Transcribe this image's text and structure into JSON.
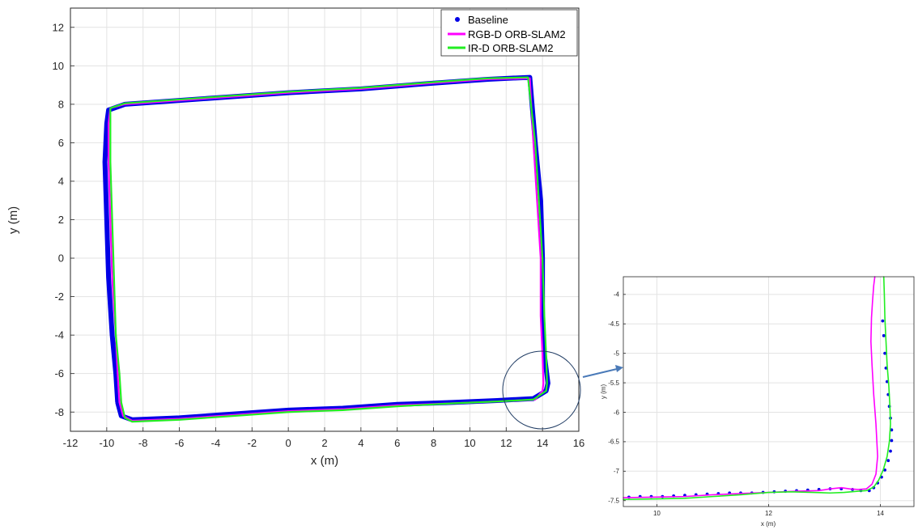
{
  "chart_data": [
    {
      "type": "line",
      "xlabel": "x (m)",
      "ylabel": "y (m)",
      "xlim": [
        -12,
        16
      ],
      "ylim": [
        -9,
        13
      ],
      "xticks": [
        -12,
        -10,
        -8,
        -6,
        -4,
        -2,
        0,
        2,
        4,
        6,
        8,
        10,
        12,
        14,
        16
      ],
      "yticks": [
        -8,
        -6,
        -4,
        -2,
        0,
        2,
        4,
        6,
        8,
        10,
        12
      ],
      "grid": true,
      "legend_position": "top-right",
      "series": [
        {
          "name": "Baseline",
          "style": "markers",
          "color": "#0000e6",
          "x": [
            -9.4,
            -9.2,
            -8.6,
            -6.0,
            -3.0,
            0.0,
            3.0,
            6.0,
            9.0,
            11.5,
            13.5,
            14.2,
            14.3,
            14.1,
            14.0,
            14.0,
            13.9,
            13.6,
            13.3,
            11.0,
            8.0,
            4.0,
            0.0,
            -3.0,
            -6.0,
            -9.0,
            -9.9,
            -10.0,
            -10.1,
            -10.0,
            -9.9,
            -9.7,
            -9.5,
            -9.4
          ],
          "y": [
            -7.5,
            -8.2,
            -8.4,
            -8.3,
            -8.1,
            -7.9,
            -7.8,
            -7.6,
            -7.5,
            -7.4,
            -7.3,
            -6.9,
            -6.5,
            -5.0,
            -3.0,
            0.0,
            3.0,
            6.0,
            9.4,
            9.3,
            9.1,
            8.8,
            8.6,
            8.4,
            8.2,
            8.0,
            7.7,
            7.0,
            5.0,
            2.0,
            -1.0,
            -4.0,
            -6.0,
            -7.5
          ]
        },
        {
          "name": "RGB-D ORB-SLAM2",
          "style": "line",
          "color": "#ff00ff",
          "x": [
            -9.3,
            -9.1,
            -8.6,
            -6.0,
            -3.0,
            0.0,
            3.0,
            6.0,
            9.0,
            11.5,
            13.0,
            13.6,
            14.0,
            14.05,
            14.0,
            13.9,
            13.9,
            13.7,
            13.5,
            13.3,
            11.0,
            8.0,
            4.0,
            0.0,
            -3.0,
            -6.0,
            -9.0,
            -9.8,
            -9.9,
            -9.9,
            -9.8,
            -9.7,
            -9.5,
            -9.4,
            -9.3
          ],
          "y": [
            -7.5,
            -8.2,
            -8.45,
            -8.35,
            -8.15,
            -7.95,
            -7.85,
            -7.65,
            -7.55,
            -7.45,
            -7.38,
            -7.35,
            -6.9,
            -6.5,
            -5.0,
            -3.0,
            0.0,
            3.0,
            6.0,
            9.35,
            9.3,
            9.1,
            8.8,
            8.6,
            8.4,
            8.2,
            8.0,
            7.8,
            7.0,
            5.0,
            2.0,
            -1.0,
            -4.0,
            -6.0,
            -7.5
          ]
        },
        {
          "name": "IR-D ORB-SLAM2",
          "style": "line",
          "color": "#22ee22",
          "x": [
            -9.2,
            -9.0,
            -8.6,
            -6.0,
            -3.0,
            0.0,
            3.0,
            6.0,
            9.0,
            11.5,
            13.5,
            14.2,
            14.25,
            14.2,
            14.1,
            14.0,
            13.8,
            13.6,
            13.2,
            11.0,
            8.0,
            4.0,
            0.0,
            -3.0,
            -6.0,
            -9.0,
            -9.8,
            -9.8,
            -9.8,
            -9.7,
            -9.6,
            -9.5,
            -9.3,
            -9.2
          ],
          "y": [
            -7.5,
            -8.3,
            -8.5,
            -8.4,
            -8.2,
            -8.0,
            -7.9,
            -7.7,
            -7.55,
            -7.45,
            -7.35,
            -6.9,
            -6.5,
            -5.0,
            -3.0,
            0.0,
            3.0,
            6.0,
            9.4,
            9.35,
            9.15,
            8.85,
            8.65,
            8.45,
            8.25,
            8.05,
            7.8,
            7.0,
            5.0,
            2.0,
            -1.0,
            -4.0,
            -6.0,
            -7.5
          ]
        }
      ]
    },
    {
      "type": "line",
      "xlabel": "x (m)",
      "ylabel": "y (m)",
      "xlim": [
        9.4,
        14.6
      ],
      "ylim": [
        -7.6,
        -3.7
      ],
      "xticks": [
        10,
        12,
        14
      ],
      "yticks": [
        -7.5,
        -7,
        -6.5,
        -6,
        -5.5,
        -5,
        -4.5,
        -4
      ],
      "grid": true,
      "series": [
        {
          "name": "Baseline",
          "style": "markers",
          "color": "#0000e6",
          "x": [
            9.5,
            9.7,
            9.9,
            10.1,
            10.3,
            10.5,
            10.7,
            10.9,
            11.1,
            11.3,
            11.5,
            11.7,
            11.9,
            12.1,
            12.3,
            12.5,
            12.7,
            12.9,
            13.1,
            13.3,
            13.5,
            13.65,
            13.8,
            13.88,
            13.95,
            14.02,
            14.08,
            14.14,
            14.18,
            14.2,
            14.2,
            14.18,
            14.16,
            14.14,
            14.12,
            14.1,
            14.08,
            14.06,
            14.04
          ],
          "y": [
            -7.44,
            -7.43,
            -7.43,
            -7.43,
            -7.42,
            -7.41,
            -7.4,
            -7.39,
            -7.38,
            -7.37,
            -7.37,
            -7.37,
            -7.36,
            -7.35,
            -7.34,
            -7.33,
            -7.32,
            -7.31,
            -7.3,
            -7.3,
            -7.31,
            -7.33,
            -7.33,
            -7.28,
            -7.2,
            -7.1,
            -6.98,
            -6.82,
            -6.66,
            -6.48,
            -6.3,
            -6.1,
            -5.9,
            -5.7,
            -5.48,
            -5.25,
            -5.0,
            -4.7,
            -4.45
          ]
        },
        {
          "name": "RGB-D ORB-SLAM2",
          "style": "line",
          "color": "#ff00ff",
          "x": [
            9.4,
            10.0,
            10.5,
            11.0,
            11.5,
            12.0,
            12.5,
            12.9,
            13.1,
            13.3,
            13.45,
            13.6,
            13.75,
            13.85,
            13.92,
            13.95,
            13.92,
            13.88,
            13.85,
            13.83,
            13.84,
            13.86,
            13.88,
            13.9
          ],
          "y": [
            -7.45,
            -7.44,
            -7.43,
            -7.4,
            -7.38,
            -7.36,
            -7.34,
            -7.33,
            -7.3,
            -7.28,
            -7.3,
            -7.31,
            -7.3,
            -7.22,
            -7.05,
            -6.75,
            -6.2,
            -5.7,
            -5.2,
            -4.8,
            -4.4,
            -4.1,
            -3.85,
            -3.7
          ]
        },
        {
          "name": "IR-D ORB-SLAM2",
          "style": "line",
          "color": "#22ee22",
          "x": [
            9.4,
            10.0,
            10.5,
            11.0,
            11.5,
            12.0,
            12.4,
            12.8,
            13.1,
            13.35,
            13.6,
            13.75,
            13.88,
            13.97,
            14.05,
            14.12,
            14.16,
            14.18,
            14.17,
            14.15,
            14.12,
            14.1,
            14.08,
            14.07,
            14.06
          ],
          "y": [
            -7.48,
            -7.47,
            -7.46,
            -7.43,
            -7.4,
            -7.36,
            -7.35,
            -7.36,
            -7.37,
            -7.36,
            -7.34,
            -7.33,
            -7.27,
            -7.15,
            -6.98,
            -6.75,
            -6.5,
            -6.2,
            -5.9,
            -5.55,
            -5.2,
            -4.8,
            -4.4,
            -4.0,
            -3.7
          ]
        }
      ]
    }
  ],
  "callout": {
    "circle_center_data": [
      14.0,
      -6.8
    ],
    "arrow_color": "#4a7ab8"
  }
}
